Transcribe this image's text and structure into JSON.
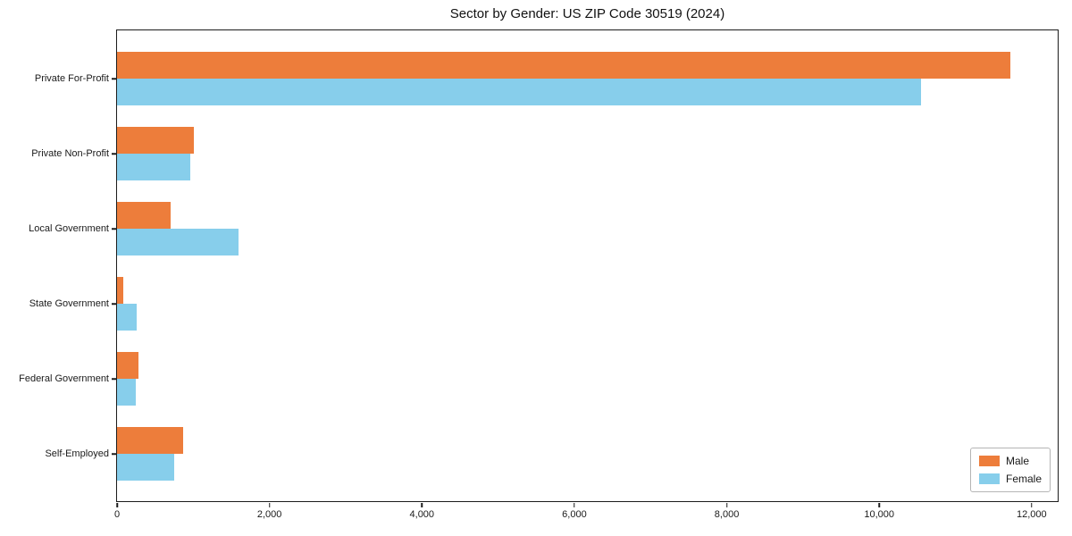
{
  "chart_data": {
    "type": "bar",
    "orientation": "horizontal",
    "title": "Sector by Gender: US ZIP Code 30519 (2024)",
    "categories": [
      "Private For-Profit",
      "Private Non-Profit",
      "Local Government",
      "State Government",
      "Federal Government",
      "Self-Employed"
    ],
    "series": [
      {
        "name": "Male",
        "color": "#ed7d3b",
        "values": [
          11720,
          1005,
          700,
          80,
          280,
          865
        ]
      },
      {
        "name": "Female",
        "color": "#87ceeb",
        "values": [
          10550,
          960,
          1590,
          255,
          250,
          750
        ]
      }
    ],
    "xlabel": "",
    "ylabel": "",
    "xlim": [
      0,
      12330
    ],
    "x_ticks": [
      0,
      2000,
      4000,
      6000,
      8000,
      10000,
      12000
    ],
    "x_tick_labels": [
      "0",
      "2,000",
      "4,000",
      "6,000",
      "8,000",
      "10,000",
      "12,000"
    ],
    "grid": false,
    "legend_position": "lower right",
    "background_color": "#ffffff",
    "spine_color": "#1c1c1c"
  }
}
